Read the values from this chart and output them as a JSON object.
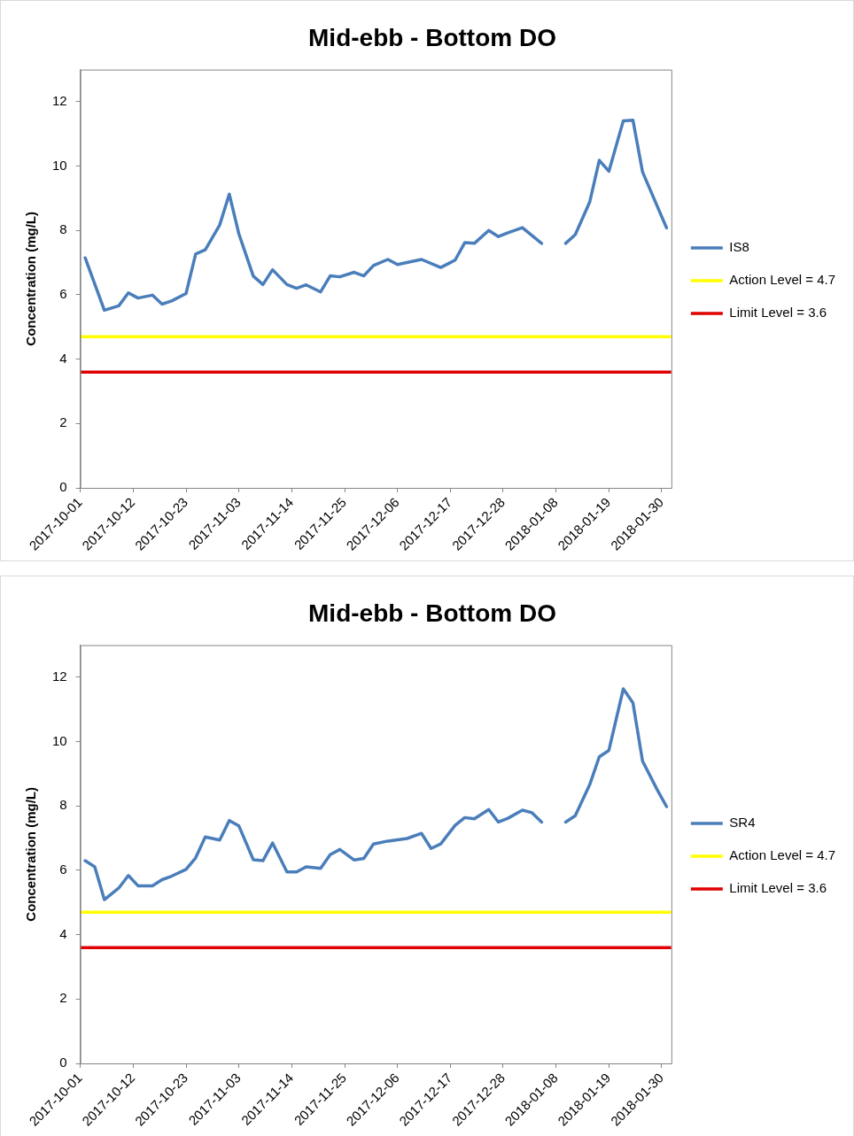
{
  "chart_data": [
    {
      "type": "line",
      "title": "Mid-ebb - Bottom DO",
      "ylabel": "Concentration (mg/L)",
      "xlim": [
        "2017-10-01",
        "2018-02-01"
      ],
      "xticks": [
        "2017-10-01",
        "2017-10-12",
        "2017-10-23",
        "2017-11-03",
        "2017-11-14",
        "2017-11-25",
        "2017-12-06",
        "2017-12-17",
        "2017-12-28",
        "2018-01-08",
        "2018-01-19",
        "2018-01-30"
      ],
      "ylim": [
        0,
        13
      ],
      "yticks": [
        0,
        2,
        4,
        6,
        8,
        10,
        12
      ],
      "grid": false,
      "legend": "right",
      "marker": "none",
      "line_style": "solid",
      "series": [
        {
          "name": "IS8",
          "color": "#4a7ebb",
          "x": [
            "2017-10-02",
            "2017-10-06",
            "2017-10-09",
            "2017-10-11",
            "2017-10-13",
            "2017-10-16",
            "2017-10-18",
            "2017-10-20",
            "2017-10-23",
            "2017-10-25",
            "2017-10-27",
            "2017-10-30",
            "2017-11-01",
            "2017-11-03",
            "2017-11-06",
            "2017-11-08",
            "2017-11-10",
            "2017-11-13",
            "2017-11-15",
            "2017-11-17",
            "2017-11-20",
            "2017-11-22",
            "2017-11-24",
            "2017-11-27",
            "2017-11-29",
            "2017-12-01",
            "2017-12-04",
            "2017-12-06",
            "2017-12-11",
            "2017-12-15",
            "2017-12-18",
            "2017-12-20",
            "2017-12-22",
            "2017-12-25",
            "2017-12-27",
            "2017-12-29",
            "2018-01-01",
            "2018-01-05",
            "2018-01-08",
            "2018-01-10",
            "2018-01-12",
            "2018-01-15",
            "2018-01-17",
            "2018-01-19",
            "2018-01-22",
            "2018-01-24",
            "2018-01-26",
            "2018-01-31"
          ],
          "values": [
            7.15,
            5.52,
            5.66,
            6.06,
            5.9,
            5.99,
            5.71,
            5.81,
            6.04,
            7.27,
            7.4,
            8.17,
            9.13,
            7.89,
            6.58,
            6.32,
            6.78,
            6.32,
            6.2,
            6.31,
            6.09,
            6.59,
            6.56,
            6.7,
            6.59,
            6.91,
            7.1,
            6.94,
            7.1,
            6.85,
            7.08,
            7.62,
            7.6,
            8.0,
            7.81,
            7.93,
            8.09,
            7.6,
            null,
            7.6,
            7.87,
            8.88,
            10.18,
            9.84,
            11.41,
            11.43,
            9.82,
            8.08
          ]
        }
      ],
      "ref_lines": [
        {
          "axis": "y",
          "value": 4.7,
          "label": "Action Level = 4.7",
          "color": "#ffff00"
        },
        {
          "axis": "y",
          "value": 3.6,
          "label": "Limit Level = 3.6",
          "color": "#e00000"
        }
      ]
    },
    {
      "type": "line",
      "title": "Mid-ebb - Bottom DO",
      "ylabel": "Concentration (mg/L)",
      "xlim": [
        "2017-10-01",
        "2018-02-01"
      ],
      "xticks": [
        "2017-10-01",
        "2017-10-12",
        "2017-10-23",
        "2017-11-03",
        "2017-11-14",
        "2017-11-25",
        "2017-12-06",
        "2017-12-17",
        "2017-12-28",
        "2018-01-08",
        "2018-01-19",
        "2018-01-30"
      ],
      "ylim": [
        0,
        13
      ],
      "yticks": [
        0,
        2,
        4,
        6,
        8,
        10,
        12
      ],
      "grid": false,
      "legend": "right",
      "marker": "none",
      "line_style": "solid",
      "series": [
        {
          "name": "SR4",
          "color": "#4a7ebb",
          "x": [
            "2017-10-02",
            "2017-10-04",
            "2017-10-06",
            "2017-10-09",
            "2017-10-11",
            "2017-10-13",
            "2017-10-16",
            "2017-10-18",
            "2017-10-20",
            "2017-10-23",
            "2017-10-25",
            "2017-10-27",
            "2017-10-30",
            "2017-11-01",
            "2017-11-03",
            "2017-11-06",
            "2017-11-08",
            "2017-11-10",
            "2017-11-13",
            "2017-11-15",
            "2017-11-17",
            "2017-11-20",
            "2017-11-22",
            "2017-11-24",
            "2017-11-27",
            "2017-11-29",
            "2017-12-01",
            "2017-12-04",
            "2017-12-08",
            "2017-12-11",
            "2017-12-13",
            "2017-12-15",
            "2017-12-18",
            "2017-12-20",
            "2017-12-22",
            "2017-12-25",
            "2017-12-27",
            "2017-12-29",
            "2018-01-01",
            "2018-01-03",
            "2018-01-05",
            "2018-01-08",
            "2018-01-10",
            "2018-01-12",
            "2018-01-15",
            "2018-01-17",
            "2018-01-19",
            "2018-01-22",
            "2018-01-24",
            "2018-01-26",
            "2018-01-29",
            "2018-01-31"
          ],
          "values": [
            6.3,
            6.11,
            5.09,
            5.45,
            5.84,
            5.52,
            5.52,
            5.71,
            5.82,
            6.03,
            6.39,
            7.04,
            6.94,
            7.55,
            7.38,
            6.33,
            6.3,
            6.85,
            5.95,
            5.95,
            6.11,
            6.06,
            6.49,
            6.65,
            6.32,
            6.37,
            6.82,
            6.91,
            6.99,
            7.15,
            6.68,
            6.82,
            7.4,
            7.64,
            7.6,
            7.89,
            7.5,
            7.62,
            7.87,
            7.79,
            7.5,
            null,
            7.5,
            7.7,
            8.66,
            9.53,
            9.73,
            11.64,
            11.21,
            9.4,
            8.52,
            7.98
          ]
        }
      ],
      "ref_lines": [
        {
          "axis": "y",
          "value": 4.7,
          "label": "Action Level = 4.7",
          "color": "#ffff00"
        },
        {
          "axis": "y",
          "value": 3.6,
          "label": "Limit Level = 3.6",
          "color": "#e00000"
        }
      ]
    }
  ]
}
